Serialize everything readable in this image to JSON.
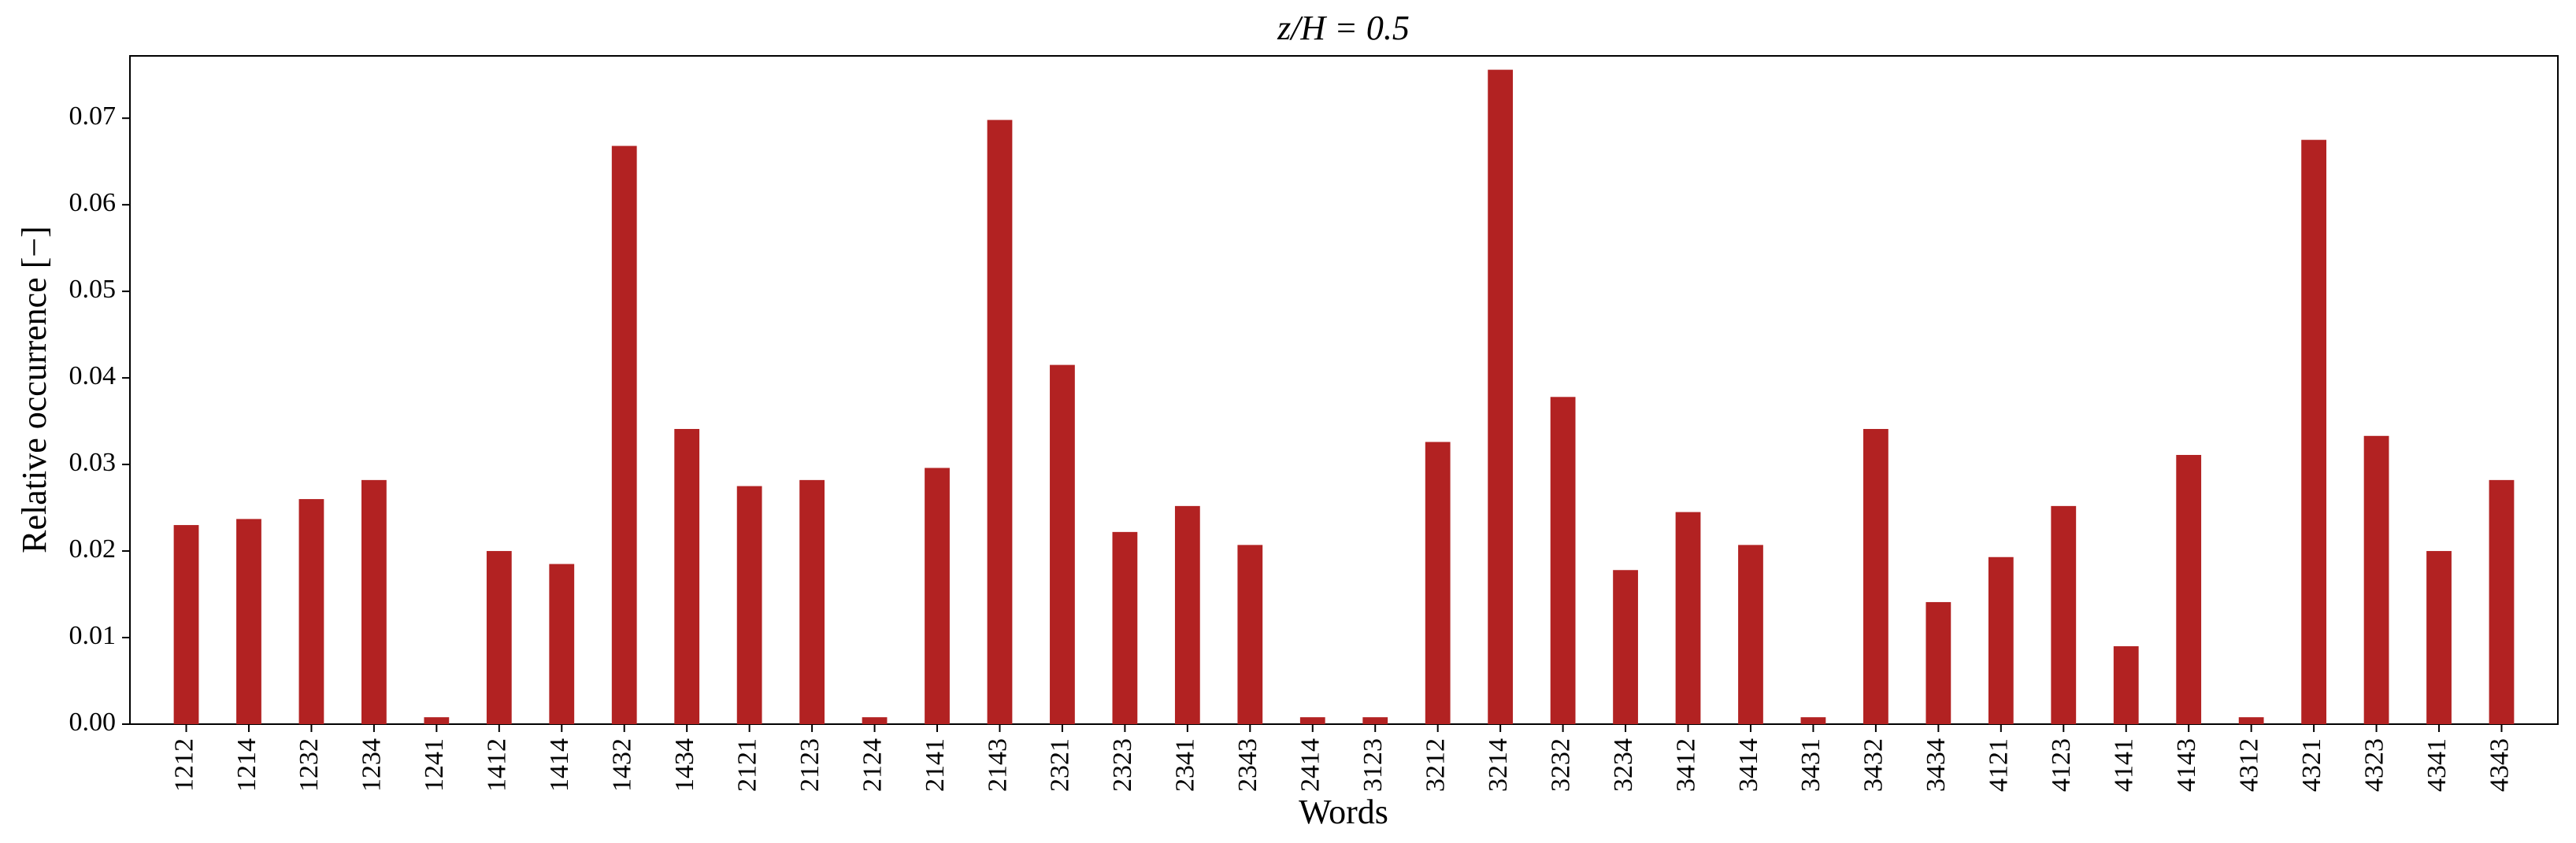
{
  "chart_data": {
    "type": "bar",
    "title": "z/H = 0.5",
    "x_label": "Words",
    "y_label": "Relative occurrence [−]",
    "categories": [
      "1212",
      "1214",
      "1232",
      "1234",
      "1241",
      "1412",
      "1414",
      "1432",
      "1434",
      "2121",
      "2123",
      "2124",
      "2141",
      "2143",
      "2321",
      "2323",
      "2341",
      "2343",
      "2414",
      "3123",
      "3212",
      "3214",
      "3232",
      "3234",
      "3412",
      "3414",
      "3431",
      "3432",
      "3434",
      "4121",
      "4123",
      "4141",
      "4143",
      "4312",
      "4321",
      "4323",
      "4341",
      "4343"
    ],
    "values": [
      0.023,
      0.0237,
      0.026,
      0.0282,
      0.0008,
      0.02,
      0.0185,
      0.0668,
      0.0341,
      0.0275,
      0.0282,
      0.0008,
      0.0296,
      0.0698,
      0.0415,
      0.0222,
      0.0252,
      0.0207,
      0.0008,
      0.0008,
      0.0326,
      0.0756,
      0.0378,
      0.0178,
      0.0245,
      0.0207,
      0.0008,
      0.0341,
      0.0141,
      0.0193,
      0.0252,
      0.009,
      0.0311,
      0.0008,
      0.0675,
      0.0333,
      0.02,
      0.0282
    ],
    "color": "#b22222",
    "ylim": [
      0,
      0.0772
    ],
    "yticks": [
      {
        "value": 0,
        "label": "0.00"
      },
      {
        "value": 0.01,
        "label": "0.01"
      },
      {
        "value": 0.02,
        "label": "0.02"
      },
      {
        "value": 0.03,
        "label": "0.03"
      },
      {
        "value": 0.04,
        "label": "0.04"
      },
      {
        "value": 0.05,
        "label": "0.05"
      },
      {
        "value": 0.06,
        "label": "0.06"
      },
      {
        "value": 0.07,
        "label": "0.07"
      }
    ],
    "grid": false
  }
}
